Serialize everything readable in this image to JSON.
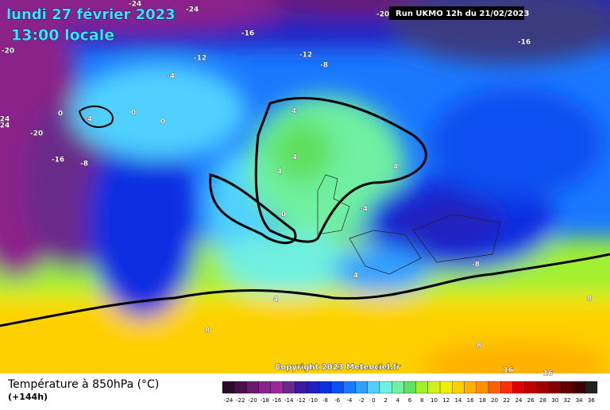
{
  "header": {
    "date": "lundi 27 février 2023",
    "time": "13:00 locale",
    "run": "Run UKMO 12h du 21/02/2023"
  },
  "copyright": "Copyright 2023 Meteociel.fr",
  "footer": {
    "title": "Température à 850hPa (°C)",
    "lead": "(+144h)"
  },
  "contour_labels": [
    -24,
    -24,
    -20,
    -16,
    -16,
    -20,
    -12,
    -12,
    -8,
    -4,
    0,
    -4,
    0,
    0,
    4,
    24,
    24,
    -20,
    -16,
    -8,
    4,
    4,
    4,
    -4,
    0,
    -8,
    -4,
    4,
    8,
    8,
    8,
    16,
    16
  ],
  "legend": {
    "labels": [
      -24,
      -22,
      -20,
      -18,
      -16,
      -14,
      -12,
      -10,
      -8,
      -6,
      -4,
      -2,
      0,
      2,
      4,
      6,
      8,
      10,
      12,
      14,
      16,
      18,
      20,
      22,
      24,
      26,
      28,
      30,
      32,
      34,
      36
    ],
    "colors": [
      "#2a0a2a",
      "#4a0f4a",
      "#6a1a6a",
      "#8a228a",
      "#9a2a9a",
      "#6a2a8a",
      "#3a1aa0",
      "#2020c0",
      "#0a2ee0",
      "#0a50f0",
      "#1a78ff",
      "#30a0ff",
      "#50d0ff",
      "#70f0e0",
      "#70f0a0",
      "#60e060",
      "#a0f030",
      "#d0f020",
      "#f0f000",
      "#ffd000",
      "#ffb000",
      "#ff9000",
      "#ff6000",
      "#ff3000",
      "#e00000",
      "#c00000",
      "#a00000",
      "#800000",
      "#600000",
      "#400000",
      "#202020"
    ]
  }
}
